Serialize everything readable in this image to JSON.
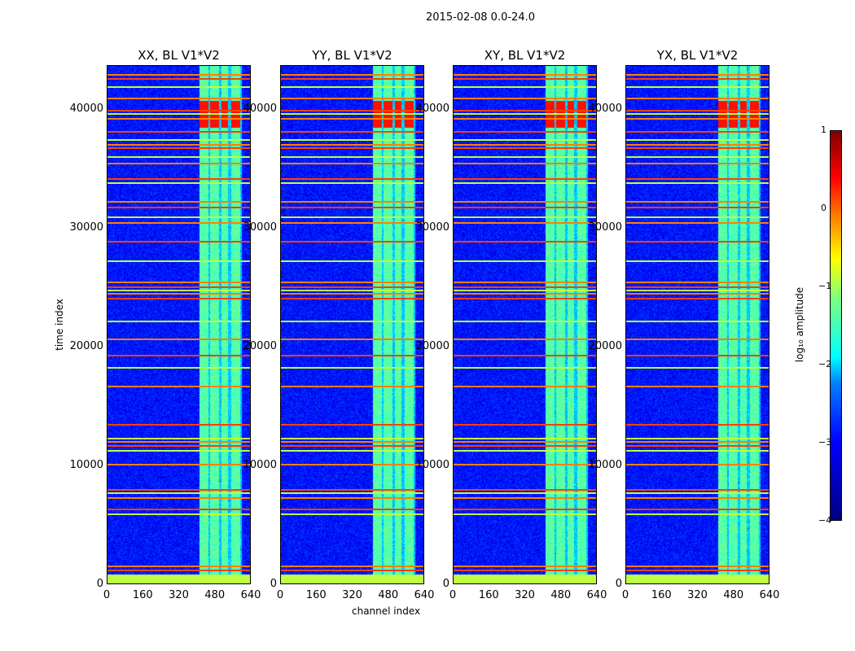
{
  "chart_data": {
    "type": "heatmap",
    "suptitle": "2015-02-08 0.0-24.0",
    "panels": [
      {
        "title": "XX, BL V1*V2"
      },
      {
        "title": "YY, BL V1*V2"
      },
      {
        "title": "XY, BL V1*V2"
      },
      {
        "title": "YX, BL V1*V2"
      }
    ],
    "xlabel": "channel index",
    "ylabel": "time index",
    "xlim": [
      0,
      640
    ],
    "ylim": [
      0,
      43700
    ],
    "xticks": [
      "0",
      "160",
      "320",
      "480",
      "640"
    ],
    "yticks": [
      "0",
      "10000",
      "20000",
      "30000",
      "40000"
    ],
    "colorbar": {
      "label": "log₁₀ amplitude",
      "range": [
        -4,
        1
      ],
      "ticks": [
        "1",
        "0",
        "−1",
        "−2",
        "−3",
        "−4"
      ],
      "colormap": "jet"
    },
    "background_log_amplitude": -3.3,
    "bright_channel_range": [
      410,
      600
    ],
    "bright_channel_columns": [
      [
        410,
        450
      ],
      [
        460,
        500
      ],
      [
        510,
        540
      ],
      [
        555,
        595
      ]
    ],
    "bottom_band": {
      "time_range": [
        0,
        800
      ],
      "value": -1.2
    },
    "rfi_time_lines": [
      1200,
      1500,
      5900,
      6300,
      7300,
      7700,
      8000,
      10100,
      11300,
      11700,
      12000,
      12300,
      13500,
      16700,
      18300,
      19300,
      20700,
      22200,
      24100,
      24500,
      24800,
      25100,
      25500,
      27300,
      28900,
      30500,
      31000,
      31800,
      32300,
      33900,
      34200,
      35500,
      36100,
      36800,
      37100,
      37500,
      38200,
      39300,
      39700,
      40000,
      41000,
      42000,
      42700,
      43000
    ]
  }
}
